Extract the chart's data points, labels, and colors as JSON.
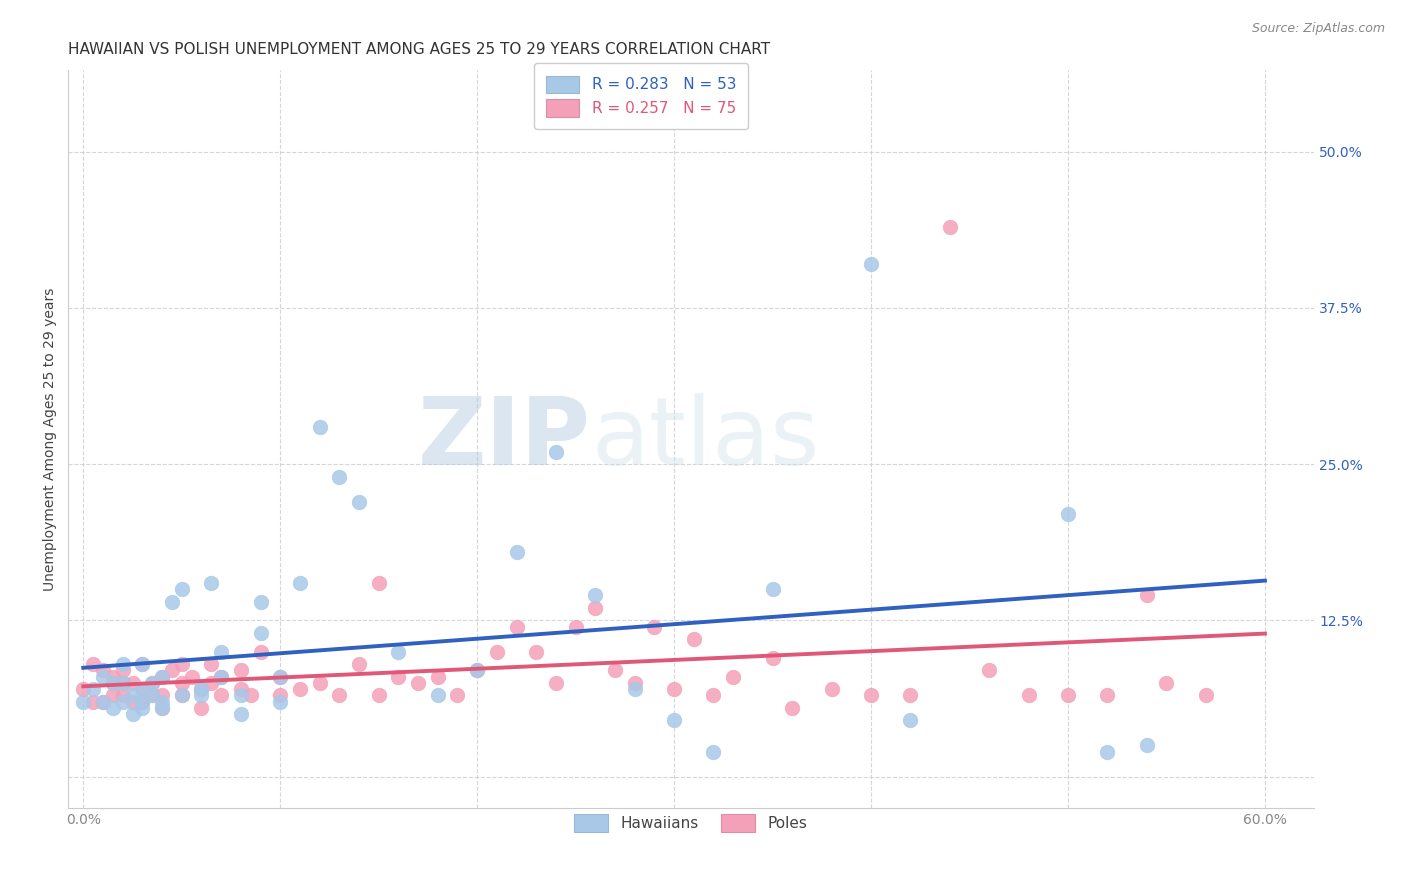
{
  "title": "HAWAIIAN VS POLISH UNEMPLOYMENT AMONG AGES 25 TO 29 YEARS CORRELATION CHART",
  "source": "Source: ZipAtlas.com",
  "ylabel": "Unemployment Among Ages 25 to 29 years",
  "hawaiian_R": 0.283,
  "hawaiian_N": 53,
  "polish_R": 0.257,
  "polish_N": 75,
  "hawaiian_color": "#a8c8e8",
  "polish_color": "#f4a0b8",
  "hawaiian_line_color": "#3060c0",
  "polish_line_color": "#e05878",
  "background_color": "#ffffff",
  "grid_color": "#cccccc",
  "title_fontsize": 11,
  "axis_label_fontsize": 10,
  "tick_label_fontsize": 10,
  "legend_fontsize": 11,
  "watermark_color": "#c8d8ec",
  "hawaiian_scatter_x": [
    0.0,
    0.005,
    0.01,
    0.01,
    0.015,
    0.015,
    0.02,
    0.02,
    0.02,
    0.025,
    0.025,
    0.03,
    0.03,
    0.03,
    0.03,
    0.035,
    0.035,
    0.04,
    0.04,
    0.04,
    0.045,
    0.05,
    0.05,
    0.06,
    0.06,
    0.065,
    0.07,
    0.07,
    0.08,
    0.08,
    0.09,
    0.09,
    0.1,
    0.1,
    0.11,
    0.12,
    0.13,
    0.14,
    0.16,
    0.18,
    0.2,
    0.22,
    0.24,
    0.26,
    0.28,
    0.3,
    0.32,
    0.35,
    0.4,
    0.42,
    0.5,
    0.52,
    0.54
  ],
  "hawaiian_scatter_y": [
    0.06,
    0.07,
    0.06,
    0.08,
    0.055,
    0.075,
    0.06,
    0.075,
    0.09,
    0.065,
    0.05,
    0.07,
    0.06,
    0.055,
    0.09,
    0.065,
    0.075,
    0.06,
    0.08,
    0.055,
    0.14,
    0.065,
    0.15,
    0.07,
    0.065,
    0.155,
    0.08,
    0.1,
    0.065,
    0.05,
    0.115,
    0.14,
    0.06,
    0.08,
    0.155,
    0.28,
    0.24,
    0.22,
    0.1,
    0.065,
    0.085,
    0.18,
    0.26,
    0.145,
    0.07,
    0.045,
    0.02,
    0.15,
    0.41,
    0.045,
    0.21,
    0.02,
    0.025
  ],
  "polish_scatter_x": [
    0.0,
    0.005,
    0.005,
    0.01,
    0.01,
    0.015,
    0.015,
    0.015,
    0.02,
    0.02,
    0.02,
    0.025,
    0.025,
    0.03,
    0.03,
    0.03,
    0.035,
    0.035,
    0.04,
    0.04,
    0.04,
    0.045,
    0.05,
    0.05,
    0.05,
    0.055,
    0.06,
    0.06,
    0.065,
    0.065,
    0.07,
    0.07,
    0.08,
    0.08,
    0.085,
    0.09,
    0.1,
    0.1,
    0.11,
    0.12,
    0.13,
    0.14,
    0.15,
    0.15,
    0.16,
    0.17,
    0.18,
    0.19,
    0.2,
    0.21,
    0.22,
    0.23,
    0.24,
    0.25,
    0.26,
    0.27,
    0.28,
    0.29,
    0.3,
    0.31,
    0.32,
    0.33,
    0.35,
    0.36,
    0.38,
    0.4,
    0.42,
    0.44,
    0.46,
    0.48,
    0.5,
    0.52,
    0.54,
    0.55,
    0.57
  ],
  "polish_scatter_y": [
    0.07,
    0.09,
    0.06,
    0.085,
    0.06,
    0.075,
    0.065,
    0.08,
    0.075,
    0.065,
    0.085,
    0.075,
    0.06,
    0.09,
    0.07,
    0.06,
    0.075,
    0.065,
    0.08,
    0.065,
    0.055,
    0.085,
    0.075,
    0.065,
    0.09,
    0.08,
    0.07,
    0.055,
    0.075,
    0.09,
    0.065,
    0.08,
    0.07,
    0.085,
    0.065,
    0.1,
    0.08,
    0.065,
    0.07,
    0.075,
    0.065,
    0.09,
    0.065,
    0.155,
    0.08,
    0.075,
    0.08,
    0.065,
    0.085,
    0.1,
    0.12,
    0.1,
    0.075,
    0.12,
    0.135,
    0.085,
    0.075,
    0.12,
    0.07,
    0.11,
    0.065,
    0.08,
    0.095,
    0.055,
    0.07,
    0.065,
    0.065,
    0.44,
    0.085,
    0.065,
    0.065,
    0.065,
    0.145,
    0.075,
    0.065
  ],
  "xlim_min": -0.008,
  "xlim_max": 0.625,
  "ylim_min": -0.025,
  "ylim_max": 0.565,
  "x_ticks": [
    0.0,
    0.1,
    0.2,
    0.3,
    0.4,
    0.5,
    0.6
  ],
  "x_tick_labels": [
    "0.0%",
    "",
    "",
    "",
    "",
    "",
    "60.0%"
  ],
  "y_ticks": [
    0.0,
    0.125,
    0.25,
    0.375,
    0.5
  ],
  "y_tick_labels_right": [
    "",
    "12.5%",
    "25.0%",
    "37.5%",
    "50.0%"
  ]
}
